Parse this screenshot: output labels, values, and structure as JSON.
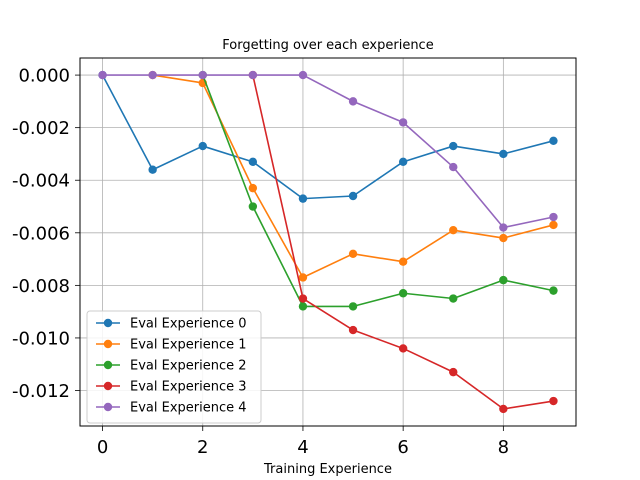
{
  "chart_data": {
    "type": "line",
    "title": "Forgetting over each experience",
    "xlabel": "Training Experience",
    "ylabel": "",
    "x": [
      0,
      1,
      2,
      3,
      4,
      5,
      6,
      7,
      8,
      9
    ],
    "xlim": [
      -0.45,
      9.45
    ],
    "ylim": [
      -0.01335,
      0.00065
    ],
    "xticks": [
      0,
      2,
      4,
      6,
      8
    ],
    "xtick_labels": [
      "0",
      "2",
      "4",
      "6",
      "8"
    ],
    "yticks": [
      0.0,
      -0.002,
      -0.004,
      -0.006,
      -0.008,
      -0.01,
      -0.012
    ],
    "ytick_labels": [
      "0.000",
      "-0.002",
      "-0.004",
      "-0.006",
      "-0.008",
      "-0.010",
      "-0.012"
    ],
    "grid": true,
    "legend_position": "lower-left",
    "series": [
      {
        "name": "Eval Experience 0",
        "color": "#1f77b4",
        "values": [
          0.0,
          -0.0036,
          -0.0027,
          -0.0033,
          -0.0047,
          -0.0046,
          -0.0033,
          -0.0027,
          -0.003,
          -0.0025
        ]
      },
      {
        "name": "Eval Experience 1",
        "color": "#ff7f0e",
        "values": [
          null,
          0.0,
          -0.0003,
          -0.0043,
          -0.0077,
          -0.0068,
          -0.0071,
          -0.0059,
          -0.0062,
          -0.0057
        ]
      },
      {
        "name": "Eval Experience 2",
        "color": "#2ca02c",
        "values": [
          null,
          null,
          0.0,
          -0.005,
          -0.0088,
          -0.0088,
          -0.0083,
          -0.0085,
          -0.0078,
          -0.0082
        ]
      },
      {
        "name": "Eval Experience 3",
        "color": "#d62728",
        "values": [
          null,
          null,
          null,
          0.0,
          -0.0085,
          -0.0097,
          -0.0104,
          -0.0113,
          -0.0127,
          -0.0124
        ]
      },
      {
        "name": "Eval Experience 4",
        "color": "#9467bd",
        "values": [
          0.0,
          0.0,
          0.0,
          0.0,
          0.0,
          -0.001,
          -0.0018,
          -0.0035,
          -0.0058,
          -0.0054
        ]
      }
    ]
  }
}
